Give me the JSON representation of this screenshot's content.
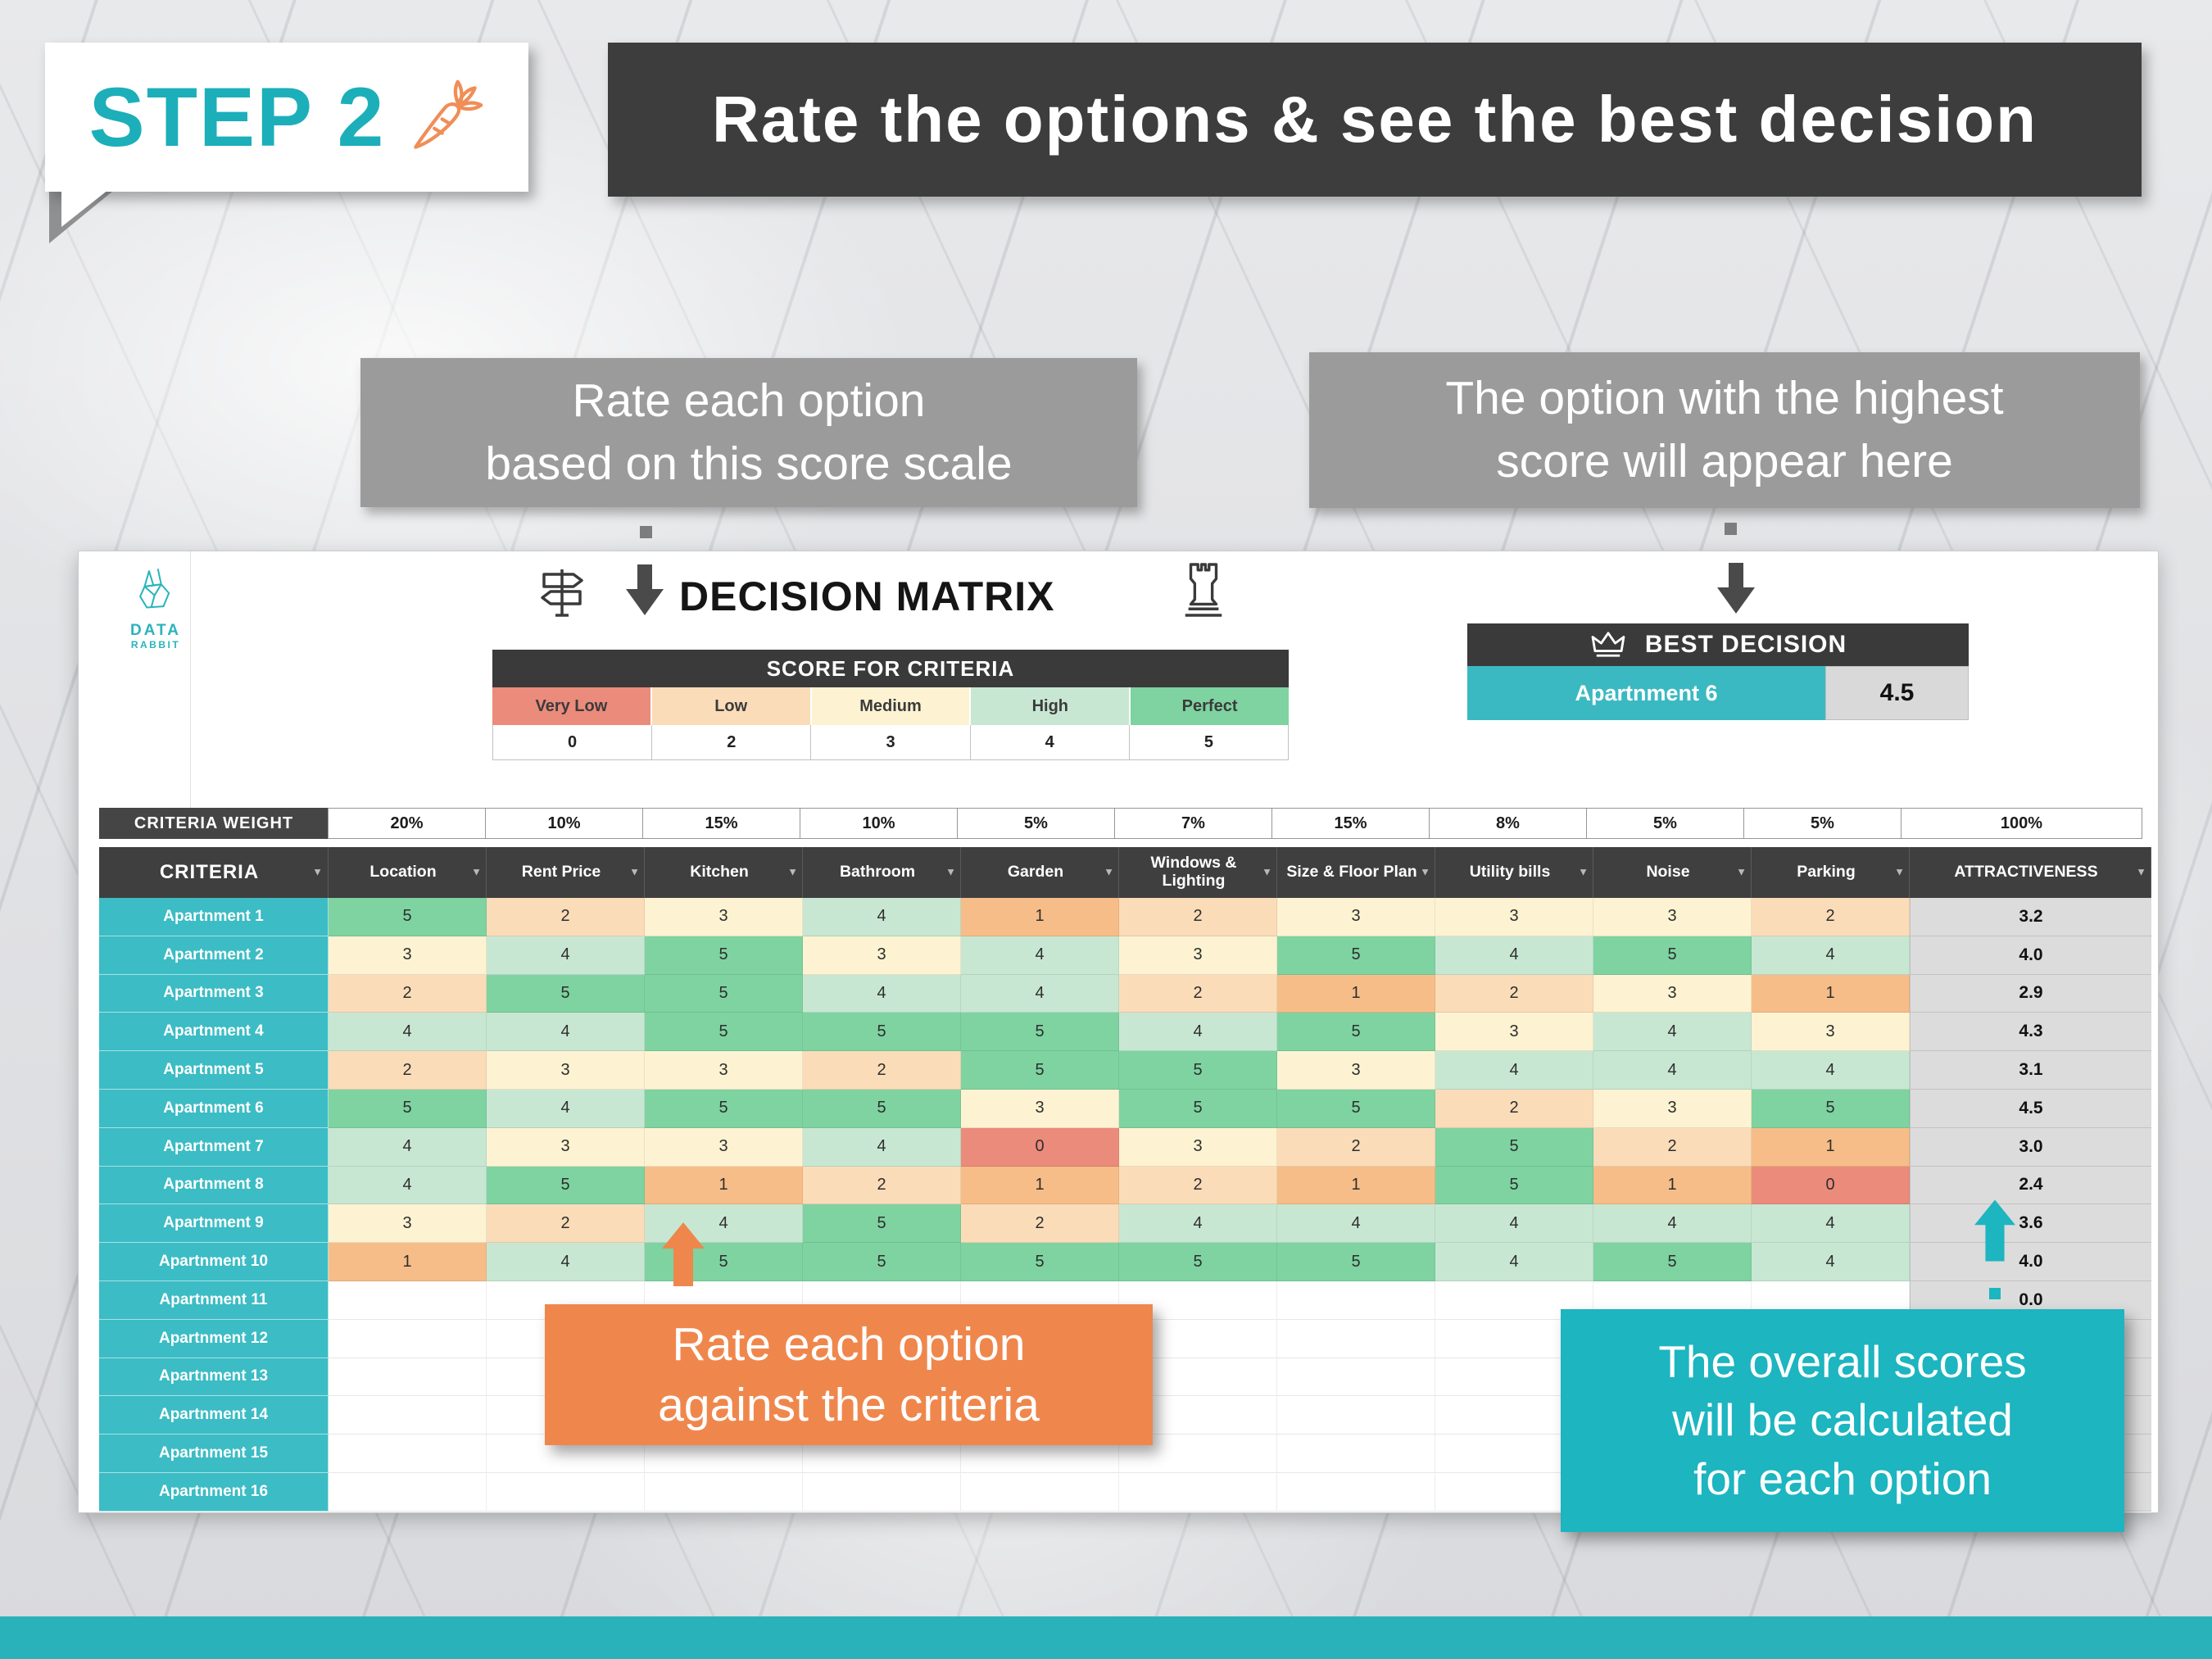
{
  "header": {
    "step_label": "STEP 2",
    "banner_title": "Rate the options & see the best decision"
  },
  "logo": {
    "line1": "DATA",
    "line2": "RABBIT"
  },
  "callouts": {
    "score_scale": {
      "line1": "Rate each option",
      "line2": "based on this score scale"
    },
    "best": {
      "line1": "The option with the highest",
      "line2": "score will appear here"
    },
    "rate": {
      "line1": "Rate each option",
      "line2": "against the criteria"
    },
    "overall": {
      "line1": "The overall scores",
      "line2": "will be calculated",
      "line3": "for each option"
    }
  },
  "matrix": {
    "title": "DECISION MATRIX",
    "score_header": "SCORE FOR CRITERIA",
    "score_scale": [
      {
        "label": "Very Low",
        "value": "0",
        "color": "#EB8B7B"
      },
      {
        "label": "Low",
        "value": "2",
        "color": "#FBDCB9"
      },
      {
        "label": "Medium",
        "value": "3",
        "color": "#FDF3D2"
      },
      {
        "label": "High",
        "value": "4",
        "color": "#C8E7D3"
      },
      {
        "label": "Perfect",
        "value": "5",
        "color": "#7ED3A1"
      }
    ],
    "best": {
      "header": "BEST DECISION",
      "option": "Apartnment 6",
      "score": "4.5"
    }
  },
  "score_colors": {
    "0": "#EB8B7B",
    "1": "#F7BD88",
    "2": "#FBDCB9",
    "3": "#FDF3D2",
    "4": "#C8E7D3",
    "5": "#7ED3A1"
  },
  "table": {
    "weight_label": "CRITERIA WEIGHT",
    "criteria_label": "CRITERIA",
    "weights": [
      "20%",
      "10%",
      "15%",
      "10%",
      "5%",
      "7%",
      "15%",
      "8%",
      "5%",
      "5%",
      "100%"
    ],
    "columns": [
      "Location",
      "Rent Price",
      "Kitchen",
      "Bathroom",
      "Garden",
      "Windows & Lighting",
      "Size & Floor Plan",
      "Utility bills",
      "Noise",
      "Parking",
      "ATTRACTIVENESS"
    ],
    "rows": [
      {
        "name": "Apartnment 1",
        "scores": [
          5,
          2,
          3,
          4,
          1,
          2,
          3,
          3,
          3,
          2
        ],
        "total": "3.2"
      },
      {
        "name": "Apartnment 2",
        "scores": [
          3,
          4,
          5,
          3,
          4,
          3,
          5,
          4,
          5,
          4
        ],
        "total": "4.0"
      },
      {
        "name": "Apartnment 3",
        "scores": [
          2,
          5,
          5,
          4,
          4,
          2,
          1,
          2,
          3,
          1
        ],
        "total": "2.9"
      },
      {
        "name": "Apartnment 4",
        "scores": [
          4,
          4,
          5,
          5,
          5,
          4,
          5,
          3,
          4,
          3
        ],
        "total": "4.3"
      },
      {
        "name": "Apartnment 5",
        "scores": [
          2,
          3,
          3,
          2,
          5,
          5,
          3,
          4,
          4,
          4
        ],
        "total": "3.1"
      },
      {
        "name": "Apartnment 6",
        "scores": [
          5,
          4,
          5,
          5,
          3,
          5,
          5,
          2,
          3,
          5
        ],
        "total": "4.5"
      },
      {
        "name": "Apartnment 7",
        "scores": [
          4,
          3,
          3,
          4,
          0,
          3,
          2,
          5,
          2,
          1
        ],
        "total": "3.0"
      },
      {
        "name": "Apartnment 8",
        "scores": [
          4,
          5,
          1,
          2,
          1,
          2,
          1,
          5,
          1,
          0
        ],
        "total": "2.4"
      },
      {
        "name": "Apartnment 9",
        "scores": [
          3,
          2,
          4,
          5,
          2,
          4,
          4,
          4,
          4,
          4
        ],
        "total": "3.6"
      },
      {
        "name": "Apartnment 10",
        "scores": [
          1,
          4,
          5,
          5,
          5,
          5,
          5,
          4,
          5,
          4
        ],
        "total": "4.0"
      },
      {
        "name": "Apartnment 11",
        "scores": [],
        "total": "0.0"
      },
      {
        "name": "Apartnment 12",
        "scores": [],
        "total": ""
      },
      {
        "name": "Apartnment 13",
        "scores": [],
        "total": ""
      },
      {
        "name": "Apartnment 14",
        "scores": [],
        "total": ""
      },
      {
        "name": "Apartnment 15",
        "scores": [],
        "total": ""
      },
      {
        "name": "Apartnment 16",
        "scores": [],
        "total": ""
      }
    ]
  },
  "colors": {
    "teal": "#2BB3BC",
    "dark": "#3D3D3D",
    "orange": "#EF874D",
    "gray_callout": "#9B9B9B",
    "total_bg": "#DCDCDC"
  }
}
